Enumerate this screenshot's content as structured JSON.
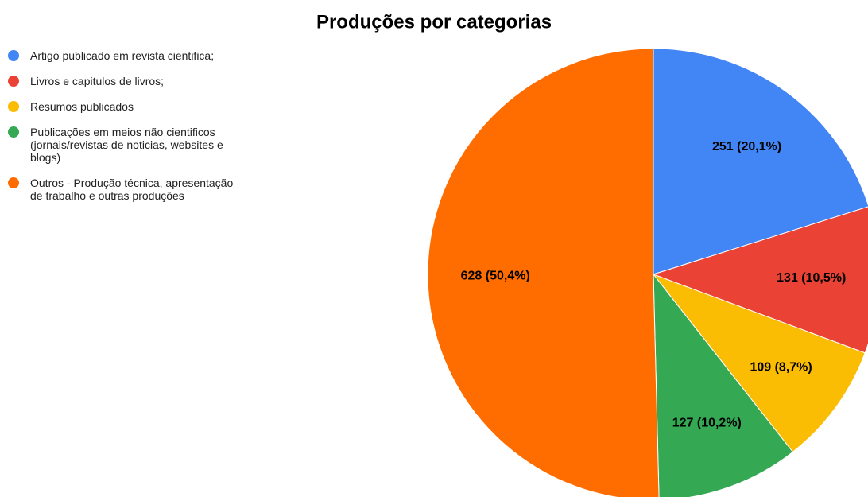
{
  "chart_data": {
    "type": "pie",
    "title": "Produções por categorias",
    "categories": [
      "Artigo publicado em revista cientifica;",
      "Livros e capitulos de livros;",
      "Resumos publicados",
      "Publicações em meios não cientificos (jornais/revistas de noticias, websites e blogs)",
      "Outros - Produção técnica, apresentação de trabalho e outras produções"
    ],
    "values": [
      251,
      131,
      109,
      127,
      628
    ],
    "value_labels": [
      "251 (20,1%)",
      "131 (10,5%)",
      "109 (8,7%)",
      "127 (10,2%)",
      "628 (50,4%)"
    ],
    "colors": [
      "#4285f4",
      "#ea4335",
      "#fbbc04",
      "#34a853",
      "#ff6d01"
    ],
    "legend": "left"
  }
}
